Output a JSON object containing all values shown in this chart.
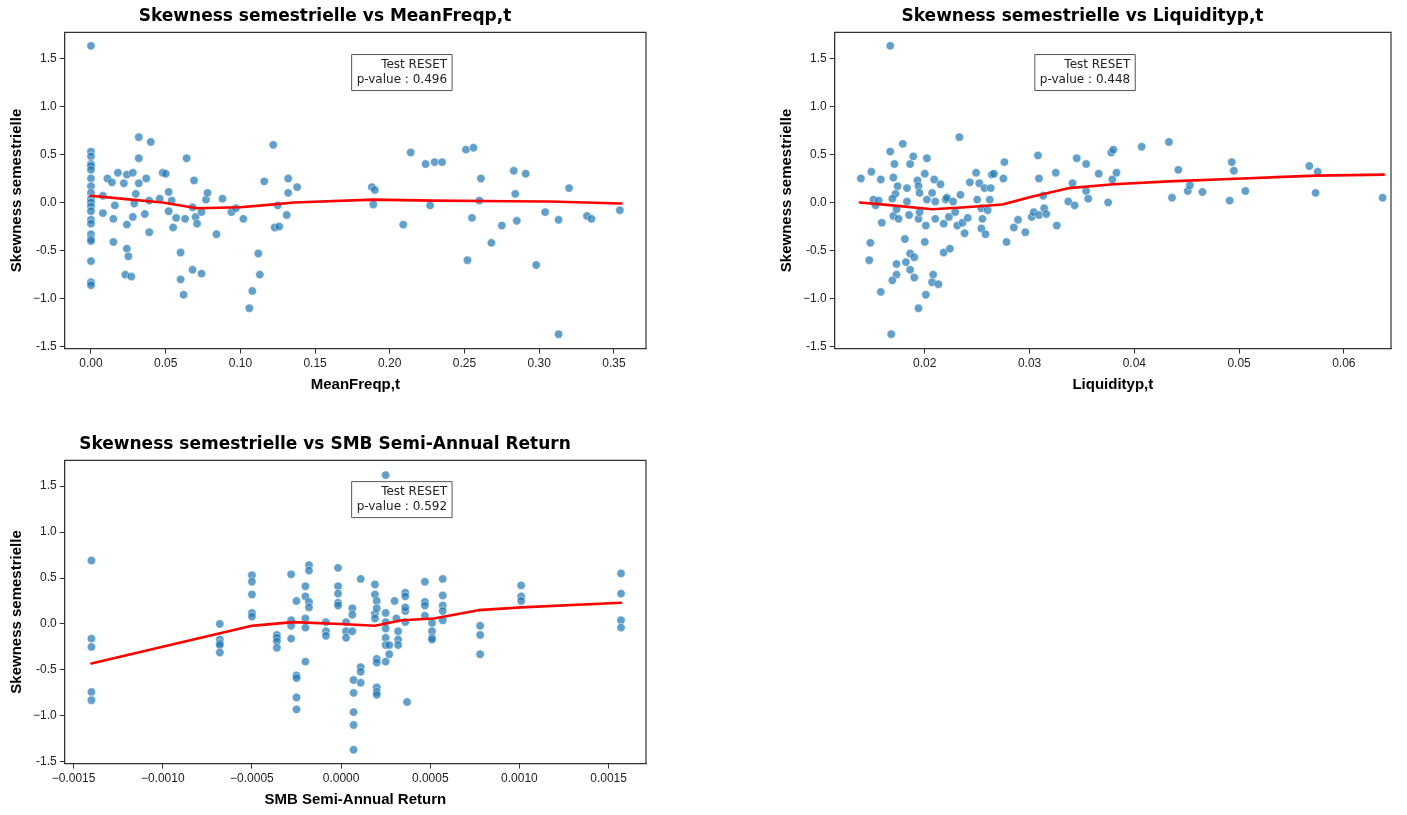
{
  "chart_data": [
    {
      "type": "scatter",
      "title": "Skewness semestrielle vs MeanFreqp,t",
      "xlabel": "MeanFreqp,t",
      "ylabel": "Skewness semestrielle",
      "xlim": [
        -0.0176,
        0.3715
      ],
      "ylim": [
        -1.52,
        1.77
      ],
      "xticks": [
        {
          "value": 0,
          "label": "0.00"
        },
        {
          "value": 0.05,
          "label": "0.05"
        },
        {
          "value": 0.1,
          "label": "0.10"
        },
        {
          "value": 0.15,
          "label": "0.15"
        },
        {
          "value": 0.2,
          "label": "0.20"
        },
        {
          "value": 0.25,
          "label": "0.25"
        },
        {
          "value": 0.3,
          "label": "0.30"
        },
        {
          "value": 0.35,
          "label": "0.35"
        }
      ],
      "yticks": [
        -1.5,
        {
          "value": -1,
          "label": "−1.0"
        },
        -0.5,
        {
          "value": 0,
          "label": "0.0"
        },
        0.5,
        {
          "value": 1,
          "label": "1.0"
        },
        1.5
      ],
      "marker": "circle",
      "grid": false,
      "annotations": [
        "Test RESET\np-value : 0.496"
      ],
      "series": [
        {
          "type": "scatter",
          "color": "#1f77b4",
          "x": [
            0,
            0,
            0,
            0,
            0,
            0,
            0,
            0,
            0,
            0,
            0,
            0,
            0,
            0,
            0,
            0,
            0,
            0,
            0,
            0,
            0,
            0.008,
            0.008,
            0.011,
            0.014,
            0.015,
            0.015,
            0.018,
            0.016,
            0.022,
            0.024,
            0.024,
            0.024,
            0.025,
            0.023,
            0.027,
            0.028,
            0.03,
            0.029,
            0.028,
            0.032,
            0.032,
            0.032,
            0.036,
            0.037,
            0.04,
            0.039,
            0.039,
            0.046,
            0.048,
            0.05,
            0.052,
            0.052,
            0.054,
            0.055,
            0.057,
            0.06,
            0.06,
            0.062,
            0.064,
            0.063,
            0.068,
            0.069,
            0.068,
            0.07,
            0.071,
            0.074,
            0.074,
            0.077,
            0.078,
            0.084,
            0.088,
            0.094,
            0.097,
            0.102,
            0.106,
            0.108,
            0.112,
            0.113,
            0.116,
            0.122,
            0.123,
            0.126,
            0.125,
            0.131,
            0.132,
            0.132,
            0.138,
            0.188,
            0.19,
            0.189,
            0.209,
            0.214,
            0.224,
            0.23,
            0.235,
            0.227,
            0.251,
            0.256,
            0.252,
            0.255,
            0.261,
            0.26,
            0.268,
            0.275,
            0.283,
            0.284,
            0.285,
            0.291,
            0.298,
            0.304,
            0.313,
            0.313,
            0.32,
            0.332,
            0.335,
            0.354
          ],
          "values": [
            1.63,
            0.53,
            0.48,
            0.4,
            0.38,
            0.34,
            0.25,
            0.17,
            0.1,
            0.04,
            0,
            -0.04,
            -0.09,
            -0.18,
            -0.22,
            -0.33,
            -0.38,
            -0.4,
            -0.61,
            -0.83,
            -0.86,
            0.07,
            -0.11,
            0.25,
            0.21,
            -0.17,
            -0.41,
            0.31,
            -0.03,
            0.2,
            0.29,
            -0.23,
            -0.48,
            -0.56,
            -0.75,
            -0.77,
            0.31,
            0.09,
            -0.01,
            -0.15,
            0.68,
            0.46,
            0.2,
            -0.12,
            0.25,
            0.63,
            -0.31,
            0.02,
            0.04,
            0.31,
            0.3,
            0.11,
            -0.09,
            0.02,
            -0.26,
            -0.16,
            -0.52,
            -0.8,
            -0.96,
            0.46,
            -0.17,
            -0.7,
            0.23,
            -0.05,
            -0.15,
            -0.22,
            -0.74,
            -0.1,
            0.03,
            0.1,
            -0.33,
            0.04,
            -0.1,
            -0.06,
            -0.17,
            -1.1,
            -0.92,
            -0.53,
            -0.75,
            0.22,
            0.6,
            -0.26,
            -0.25,
            -0.03,
            -0.13,
            0.25,
            0.1,
            0.16,
            0.16,
            0.13,
            -0.02,
            -0.23,
            0.52,
            0.4,
            0.42,
            0.42,
            -0.03,
            0.55,
            0.57,
            -0.6,
            -0.16,
            0.25,
            0.02,
            -0.42,
            -0.24,
            0.33,
            0.09,
            -0.19,
            0.3,
            -0.65,
            -0.1,
            -0.18,
            -1.37,
            0.15,
            -0.14,
            -0.17,
            -0.08
          ]
        },
        {
          "type": "line",
          "color": "#ff0000",
          "marker": "none",
          "x": [
            0,
            0.027,
            0.048,
            0.071,
            0.1,
            0.136,
            0.189,
            0.229,
            0.307,
            0.355
          ],
          "values": [
            0.07,
            0.03,
            0,
            -0.06,
            -0.05,
            0,
            0.03,
            0.02,
            0.01,
            -0.01
          ]
        }
      ]
    },
    {
      "type": "scatter",
      "title": "Skewness semestrielle vs Liquidityp,t",
      "xlabel": "Liquidityp,t",
      "ylabel": "Skewness semestrielle",
      "xlim": [
        0.0114,
        0.0645
      ],
      "ylim": [
        -1.52,
        1.77
      ],
      "xticks": [
        0.02,
        0.03,
        0.04,
        0.05,
        0.06
      ],
      "yticks": [
        -1.5,
        {
          "value": -1,
          "label": "−1.0"
        },
        -0.5,
        {
          "value": 0,
          "label": "0.0"
        },
        0.5,
        {
          "value": 1,
          "label": "1.0"
        },
        1.5
      ],
      "marker": "circle",
      "grid": false,
      "annotations": [
        "Test RESET\np-value : 0.448"
      ],
      "series": [
        {
          "type": "scatter",
          "color": "#1f77b4",
          "x": [
            0.0167,
            0.0139,
            0.0149,
            0.0158,
            0.0151,
            0.0153,
            0.0156,
            0.0159,
            0.0148,
            0.0147,
            0.0158,
            0.0168,
            0.0167,
            0.0171,
            0.017,
            0.0174,
            0.0172,
            0.0169,
            0.017,
            0.0175,
            0.0173,
            0.0173,
            0.0173,
            0.0169,
            0.0179,
            0.0181,
            0.0182,
            0.0183,
            0.0183,
            0.0185,
            0.0186,
            0.0186,
            0.0186,
            0.0189,
            0.019,
            0.019,
            0.0193,
            0.0194,
            0.0195,
            0.0194,
            0.0195,
            0.0194,
            0.02,
            0.0202,
            0.0202,
            0.0201,
            0.02,
            0.0201,
            0.0207,
            0.0208,
            0.0207,
            0.0209,
            0.021,
            0.021,
            0.0213,
            0.0215,
            0.0218,
            0.0218,
            0.022,
            0.0221,
            0.0224,
            0.0223,
            0.0227,
            0.0229,
            0.0234,
            0.0233,
            0.0231,
            0.0236,
            0.0238,
            0.0241,
            0.0243,
            0.0249,
            0.025,
            0.0252,
            0.0254,
            0.0255,
            0.0254,
            0.0258,
            0.0257,
            0.026,
            0.0262,
            0.0263,
            0.0264,
            0.0266,
            0.0275,
            0.0276,
            0.0278,
            0.0285,
            0.0289,
            0.0296,
            0.0302,
            0.0304,
            0.0308,
            0.0309,
            0.0309,
            0.0313,
            0.0314,
            0.0316,
            0.0325,
            0.0326,
            0.0337,
            0.0341,
            0.0343,
            0.0345,
            0.0354,
            0.0354,
            0.0356,
            0.0366,
            0.0375,
            0.0378,
            0.038,
            0.0379,
            0.0383,
            0.0407,
            0.0433,
            0.0442,
            0.0436,
            0.0451,
            0.0453,
            0.0465,
            0.0491,
            0.0493,
            0.0495,
            0.0506,
            0.0567,
            0.0575,
            0.0573,
            0.0637
          ],
          "values": [
            1.63,
            0.25,
            0.32,
            0.24,
            0.03,
            -0.03,
            0.02,
            -0.21,
            -0.42,
            -0.6,
            -0.93,
            -1.37,
            0.53,
            0.4,
            0.26,
            0.17,
            0.09,
            0.04,
            -0.14,
            -0.17,
            -0.07,
            -0.64,
            -0.75,
            -0.81,
            0.61,
            -0.38,
            -0.62,
            0.15,
            0.01,
            -0.13,
            0.4,
            -0.53,
            -0.7,
            0.48,
            -0.57,
            -0.78,
            0.23,
            0.17,
            0.1,
            -0.17,
            -0.1,
            -1.1,
            0.3,
            0.46,
            0.03,
            -0.24,
            -0.41,
            -0.96,
            0.1,
            -0.75,
            -0.83,
            0.24,
            0.01,
            -0.17,
            -0.85,
            0.19,
            -0.22,
            -0.52,
            0.03,
            0.05,
            -0.48,
            -0.15,
            0.01,
            -0.1,
            0.08,
            0.68,
            -0.24,
            -0.21,
            -0.32,
            -0.16,
            0.21,
            0.31,
            0.03,
            0.2,
            -0.06,
            -0.17,
            -0.27,
            -0.33,
            0.15,
            -0.08,
            0.03,
            0.15,
            0.29,
            0.3,
            0.25,
            0.42,
            -0.41,
            -0.26,
            -0.18,
            -0.31,
            -0.15,
            -0.1,
            0.49,
            0.25,
            -0.13,
            0.07,
            -0.06,
            -0.12,
            0.31,
            -0.24,
            0.01,
            0.2,
            -0.03,
            0.46,
            0.4,
            0.12,
            0.04,
            0.3,
            0,
            0.52,
            0.55,
            0.24,
            0.31,
            0.58,
            0.63,
            0.34,
            0.05,
            0.12,
            0.18,
            0.11,
            0.02,
            0.42,
            0.33,
            0.12,
            0.38,
            0.32,
            0.1,
            0.05
          ]
        },
        {
          "type": "line",
          "color": "#ff0000",
          "marker": "none",
          "x": [
            0.0138,
            0.0169,
            0.0207,
            0.0239,
            0.0274,
            0.0302,
            0.0338,
            0.038,
            0.0433,
            0.0503,
            0.0574,
            0.0638
          ],
          "values": [
            0,
            -0.03,
            -0.07,
            -0.05,
            -0.02,
            0.06,
            0.15,
            0.19,
            0.22,
            0.25,
            0.28,
            0.29
          ]
        }
      ]
    },
    {
      "type": "scatter",
      "title": "Skewness semestrielle vs SMB Semi-Annual Return",
      "xlabel": "SMB Semi-Annual Return",
      "ylabel": "Skewness semestrielle",
      "xlim": [
        -0.00155,
        0.00171
      ],
      "ylim": [
        -1.52,
        1.78
      ],
      "xticks": [
        {
          "value": -0.0015,
          "label": "−0.0015"
        },
        {
          "value": -0.001,
          "label": "−0.0010"
        },
        {
          "value": -0.0005,
          "label": "−0.0005"
        },
        {
          "value": 0,
          "label": "0.0000"
        },
        {
          "value": 0.0005,
          "label": "0.0005"
        },
        {
          "value": 0.001,
          "label": "0.0010"
        },
        {
          "value": 0.0015,
          "label": "0.0015"
        }
      ],
      "yticks": [
        -1.5,
        {
          "value": -1,
          "label": "−1.0"
        },
        -0.5,
        {
          "value": 0,
          "label": "0.0"
        },
        0.5,
        {
          "value": 1,
          "label": "1.0"
        },
        1.5
      ],
      "marker": "circle",
      "grid": false,
      "annotations": [
        "Test RESET\np-value : 0.592"
      ],
      "series": [
        {
          "type": "scatter",
          "color": "#1f77b4",
          "x": [
            -0.0014,
            -0.0014,
            -0.0014,
            -0.0014,
            -0.0014,
            -0.00068,
            -0.00068,
            -0.00068,
            -0.00068,
            -0.00068,
            -0.0005,
            -0.0005,
            -0.0005,
            -0.0005,
            -0.0005,
            -0.00036,
            -0.00036,
            -0.00036,
            -0.00036,
            -0.00028,
            -0.00028,
            -0.00028,
            -0.00028,
            -0.00025,
            -0.00025,
            -0.00025,
            -0.00025,
            -0.00025,
            -0.0002,
            -0.0002,
            -0.0002,
            -0.0002,
            -0.0002,
            -0.00018,
            -0.00018,
            -0.00018,
            -0.00018,
            -8.5e-05,
            -8.5e-05,
            -8.5e-05,
            -1.7e-05,
            -1.7e-05,
            -1.7e-05,
            -1.7e-05,
            -1.7e-05,
            2.8e-05,
            2.8e-05,
            2.8e-05,
            6.3e-05,
            6.3e-05,
            6.3e-05,
            7e-05,
            7e-05,
            7e-05,
            7e-05,
            7e-05,
            0.00011,
            0.00011,
            0.00011,
            0.00011,
            0.00019,
            0.00019,
            0.00019,
            0.00019,
            0.0002,
            0.0002,
            0.0002,
            0.0002,
            0.0002,
            0.0002,
            0.0002,
            0.00025,
            0.00025,
            0.00025,
            0.00025,
            0.00025,
            0.00025,
            0.00025,
            0.00027,
            0.00027,
            0.0003,
            0.00031,
            0.00032,
            0.00032,
            0.00032,
            0.00036,
            0.00036,
            0.00036,
            0.00036,
            0.00036,
            0.00037,
            0.00047,
            0.00047,
            0.00047,
            0.00047,
            0.00051,
            0.00051,
            0.00051,
            0.00051,
            0.00057,
            0.00057,
            0.00057,
            0.00057,
            0.00057,
            0.00078,
            0.00078,
            0.00078,
            0.00101,
            0.00101,
            0.00101,
            0.00157,
            0.00157,
            0.00157,
            0.00157
          ],
          "values": [
            0.69,
            -0.16,
            -0.25,
            -0.74,
            -0.83,
            0,
            -0.17,
            -0.21,
            -0.23,
            -0.31,
            0.53,
            0.46,
            0.32,
            0.12,
            0.08,
            -0.12,
            -0.15,
            -0.19,
            -0.26,
            0.54,
            0.04,
            -0.02,
            -0.16,
            0.25,
            -0.56,
            -0.59,
            -0.8,
            -0.93,
            0.41,
            0.3,
            0.06,
            -0.04,
            -0.41,
            0.64,
            0.58,
            0.24,
            0.18,
            0.02,
            -0.08,
            -0.13,
            0.61,
            0.41,
            0.33,
            0.23,
            0.2,
            0.02,
            -0.08,
            -0.15,
            0.17,
            0.1,
            -0.08,
            -0.61,
            -0.75,
            -0.96,
            -1.1,
            -1.37,
            0.49,
            -0.47,
            -0.52,
            -0.64,
            0.43,
            0.32,
            0.11,
            0.06,
            -0.38,
            -0.42,
            -0.69,
            -0.74,
            -0.77,
            0.25,
            0.17,
            1.62,
            0.12,
            0.02,
            -0.05,
            -0.15,
            -0.23,
            -0.41,
            -0.23,
            -0.33,
            0.25,
            0.06,
            -0.08,
            -0.17,
            -0.23,
            0.34,
            0.3,
            0.14,
            0.02,
            0.18,
            -0.85,
            0.46,
            0.24,
            0.2,
            0.09,
            0.01,
            -0.08,
            -0.15,
            -0.17,
            0.49,
            0.31,
            0.2,
            0.14,
            0.04,
            -0.02,
            -0.12,
            -0.33,
            0.42,
            0.3,
            0.25,
            0.55,
            0.33,
            0.04,
            -0.04
          ]
        },
        {
          "type": "line",
          "color": "#ff0000",
          "marker": "none",
          "x": [
            -0.0014,
            -0.0005,
            -0.00027,
            0,
            0.00019,
            0.00034,
            0.00052,
            0.00077,
            0.00101,
            0.00157
          ],
          "values": [
            -0.43,
            -0.02,
            0.02,
            0,
            -0.02,
            0.04,
            0.06,
            0.15,
            0.18,
            0.23
          ]
        }
      ]
    }
  ]
}
